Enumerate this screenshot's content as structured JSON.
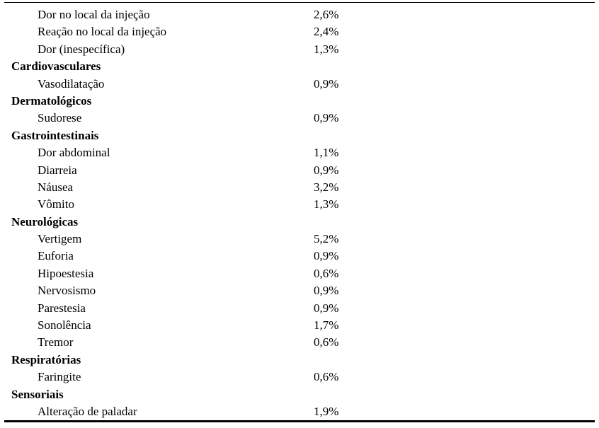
{
  "rows": [
    {
      "type": "item",
      "label": "Dor no local da injeção",
      "value": "2,6%"
    },
    {
      "type": "item",
      "label": "Reação no local da injeção",
      "value": "2,4%"
    },
    {
      "type": "item",
      "label": "Dor (inespecífica)",
      "value": "1,3%"
    },
    {
      "type": "category",
      "label": "Cardiovasculares",
      "value": ""
    },
    {
      "type": "item",
      "label": "Vasodilatação",
      "value": "0,9%"
    },
    {
      "type": "category",
      "label": "Dermatológicos",
      "value": ""
    },
    {
      "type": "item",
      "label": "Sudorese",
      "value": "0,9%"
    },
    {
      "type": "category",
      "label": "Gastrointestinais",
      "value": ""
    },
    {
      "type": "item",
      "label": "Dor abdominal",
      "value": "1,1%"
    },
    {
      "type": "item",
      "label": "Diarreia",
      "value": "0,9%"
    },
    {
      "type": "item",
      "label": "Náusea",
      "value": "3,2%"
    },
    {
      "type": "item",
      "label": "Vômito",
      "value": "1,3%"
    },
    {
      "type": "category",
      "label": "Neurológicas",
      "value": ""
    },
    {
      "type": "item",
      "label": "Vertigem",
      "value": "5,2%"
    },
    {
      "type": "item",
      "label": "Euforia",
      "value": "0,9%"
    },
    {
      "type": "item",
      "label": "Hipoestesia",
      "value": "0,6%"
    },
    {
      "type": "item",
      "label": "Nervosismo",
      "value": "0,9%"
    },
    {
      "type": "item",
      "label": "Parestesia",
      "value": "0,9%"
    },
    {
      "type": "item",
      "label": "Sonolência",
      "value": "1,7%"
    },
    {
      "type": "item",
      "label": "Tremor",
      "value": "0,6%"
    },
    {
      "type": "category",
      "label": "Respiratórias",
      "value": ""
    },
    {
      "type": "item",
      "label": "Faringite",
      "value": "0,6%"
    },
    {
      "type": "category",
      "label": "Sensoriais",
      "value": ""
    },
    {
      "type": "item",
      "label": "Alteração de paladar",
      "value": "1,9%"
    }
  ]
}
